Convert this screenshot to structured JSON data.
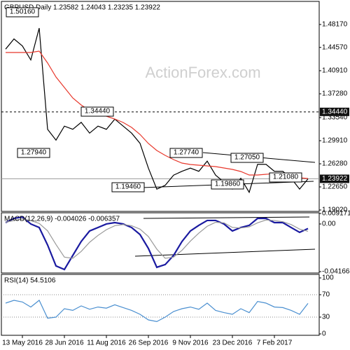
{
  "chart_data": [
    {
      "type": "line",
      "title": "GBPUSD,Daily 1.23582 1.24043 1.23235 1.23922",
      "watermark": "ActionForex.com",
      "ylim": [
        1.188,
        1.518
      ],
      "yticks": [
        {
          "value": 1.4817,
          "label": "1.48170"
        },
        {
          "value": 1.4457,
          "label": "1.44570"
        },
        {
          "value": 1.4091,
          "label": "1.40910"
        },
        {
          "value": 1.3728,
          "label": "1.37280"
        },
        {
          "value": 1.3354,
          "label": "1.33540"
        },
        {
          "value": 1.2991,
          "label": "1.29910"
        },
        {
          "value": 1.2628,
          "label": "1.26280"
        },
        {
          "value": 1.2265,
          "label": "1.22650"
        },
        {
          "value": 1.1902,
          "label": "1.19020"
        }
      ],
      "grid": false,
      "hlines": [
        {
          "value": 1.3444,
          "label": "1.34440",
          "dashed": true
        },
        {
          "value": 1.23922,
          "label": "1.23922",
          "dashed": false
        }
      ],
      "annotations": [
        "1.50160",
        "1.34440",
        "1.27940",
        "1.27740",
        "1.27050",
        "1.19460",
        "1.19860",
        "1.21080"
      ],
      "series": [
        {
          "name": "Close",
          "color": "#000000",
          "values": [
            1.443,
            1.459,
            1.448,
            1.426,
            1.476,
            1.317,
            1.3,
            1.322,
            1.317,
            1.328,
            1.311,
            1.322,
            1.317,
            1.333,
            1.322,
            1.311,
            1.295,
            1.256,
            1.223,
            1.229,
            1.245,
            1.251,
            1.256,
            1.251,
            1.267,
            1.245,
            1.234,
            1.223,
            1.24,
            1.218,
            1.262,
            1.262,
            1.251,
            1.251,
            1.24,
            1.223,
            1.2392
          ]
        },
        {
          "name": "SMA",
          "color": "#e8382c",
          "values": [
            1.4377,
            1.4377,
            1.4377,
            1.4377,
            1.4399,
            1.4212,
            1.3992,
            1.3827,
            1.3662,
            1.3552,
            1.3464,
            1.3409,
            1.3376,
            1.3332,
            1.3277,
            1.32,
            1.309,
            1.2947,
            1.2837,
            1.276,
            1.2694,
            1.2639,
            1.2617,
            1.2606,
            1.2595,
            1.2584,
            1.2562,
            1.254,
            1.2507,
            1.2452,
            1.2452,
            1.2463,
            1.2474,
            1.2452,
            1.243,
            1.2408,
            1.2397
          ]
        }
      ]
    },
    {
      "type": "line",
      "title": "MACD(12,26,9) -0.004026 -0.006357",
      "ylim": [
        -0.041663,
        0.009171
      ],
      "yticks": [
        0.009171,
        {
          "value": 0,
          "label": "0.00"
        },
        -0.041663
      ],
      "grid": false,
      "series": [
        {
          "name": "MACD",
          "color": "#1a1aa0",
          "values": [
            0.0012,
            0.0049,
            0.0061,
            0,
            -0.0031,
            -0.0184,
            -0.0367,
            -0.0398,
            -0.0275,
            -0.0153,
            -0.0061,
            -0.0031,
            0,
            0.0012,
            0,
            -0.0031,
            -0.0092,
            -0.0214,
            -0.0379,
            -0.0355,
            -0.0275,
            -0.0153,
            -0.0061,
            -0.0012,
            0.0031,
            0.0031,
            0,
            -0.0061,
            -0.0031,
            -0.0012,
            0.0049,
            0.0049,
            0.0012,
            0.0012,
            -0.0031,
            -0.0073,
            -0.004
          ]
        },
        {
          "name": "Signal",
          "color": "#9a9a9a",
          "values": [
            0.0015,
            0.003,
            0.0045,
            0.003,
            0.0005,
            -0.006,
            -0.018,
            -0.029,
            -0.03,
            -0.024,
            -0.016,
            -0.01,
            -0.005,
            -0.0015,
            -0.0005,
            -0.0015,
            -0.0045,
            -0.011,
            -0.022,
            -0.03,
            -0.029,
            -0.023,
            -0.015,
            -0.008,
            -0.002,
            0.0015,
            0.001,
            -0.003,
            -0.0035,
            -0.0025,
            0.001,
            0.0035,
            0.003,
            0.002,
            -0.0005,
            -0.0045,
            -0.0064
          ]
        }
      ]
    },
    {
      "type": "line",
      "title": "RSI(14) 54.5106",
      "ylim": [
        0,
        100
      ],
      "yticks": [
        100,
        70,
        30,
        0
      ],
      "grid": true,
      "categories": [
        null,
        null,
        "13 May 2016",
        null,
        null,
        null,
        null,
        "28 Jun 2016",
        null,
        null,
        null,
        null,
        "11 Aug 2016",
        null,
        null,
        null,
        null,
        "26 Sep 2016",
        null,
        null,
        null,
        null,
        "9 Nov 2016",
        null,
        null,
        null,
        null,
        "23 Dec 2016",
        null,
        null,
        null,
        null,
        "7 Feb 2017",
        null,
        null,
        null,
        null
      ],
      "series": [
        {
          "name": "RSI",
          "color": "#4a8fd0",
          "values": [
            55,
            60,
            57,
            48,
            60,
            28,
            30,
            45,
            42,
            50,
            44,
            48,
            46,
            52,
            47,
            42,
            35,
            25,
            22,
            30,
            40,
            45,
            48,
            44,
            55,
            42,
            38,
            35,
            45,
            38,
            58,
            55,
            48,
            47,
            42,
            35,
            54.5106
          ]
        }
      ]
    }
  ]
}
